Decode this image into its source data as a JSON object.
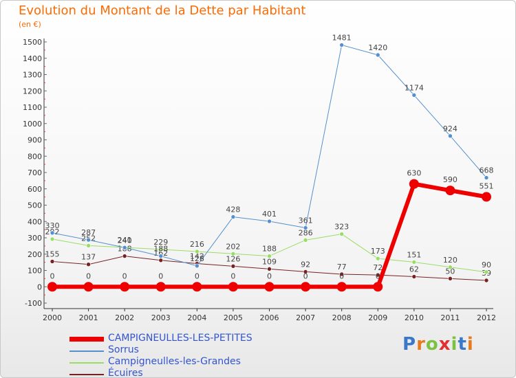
{
  "title": "Evolution du Montant de la Dette par Habitant",
  "subtitle": "(en €)",
  "logo": {
    "text": "Proxiti",
    "letter_colors": [
      "#3a78c8",
      "#e87a1e",
      "#7cc242",
      "#e03030",
      "#7cc242",
      "#3a78c8",
      "#e87a1e"
    ]
  },
  "chart_data": {
    "type": "line",
    "x": [
      2000,
      2001,
      2002,
      2003,
      2004,
      2005,
      2006,
      2007,
      2008,
      2009,
      2010,
      2011,
      2012
    ],
    "ylim": [
      -100,
      1500
    ],
    "yticks": [
      -100,
      0,
      100,
      200,
      300,
      400,
      500,
      600,
      700,
      800,
      900,
      1000,
      1100,
      1200,
      1300,
      1400,
      1500
    ],
    "grid": false,
    "legend_position": "bottom-left",
    "series": [
      {
        "name": "CAMPIGNEULLES-LES-PETITES",
        "color": "#ee0000",
        "values": [
          0,
          0,
          0,
          0,
          0,
          0,
          0,
          0,
          0,
          0,
          630,
          590,
          551
        ]
      },
      {
        "name": "Sorrus",
        "color": "#5590cc",
        "values": [
          330,
          287,
          240,
          188,
          128,
          428,
          401,
          361,
          1481,
          1420,
          1174,
          924,
          668
        ]
      },
      {
        "name": "Campigneulles-les-Grandes",
        "color": "#99dd66",
        "values": [
          292,
          252,
          241,
          229,
          216,
          202,
          188,
          286,
          323,
          173,
          151,
          120,
          90
        ]
      },
      {
        "name": "Écuires",
        "color": "#772222",
        "values": [
          155,
          137,
          188,
          162,
          142,
          126,
          109,
          92,
          77,
          72,
          62,
          50,
          39
        ]
      }
    ]
  }
}
